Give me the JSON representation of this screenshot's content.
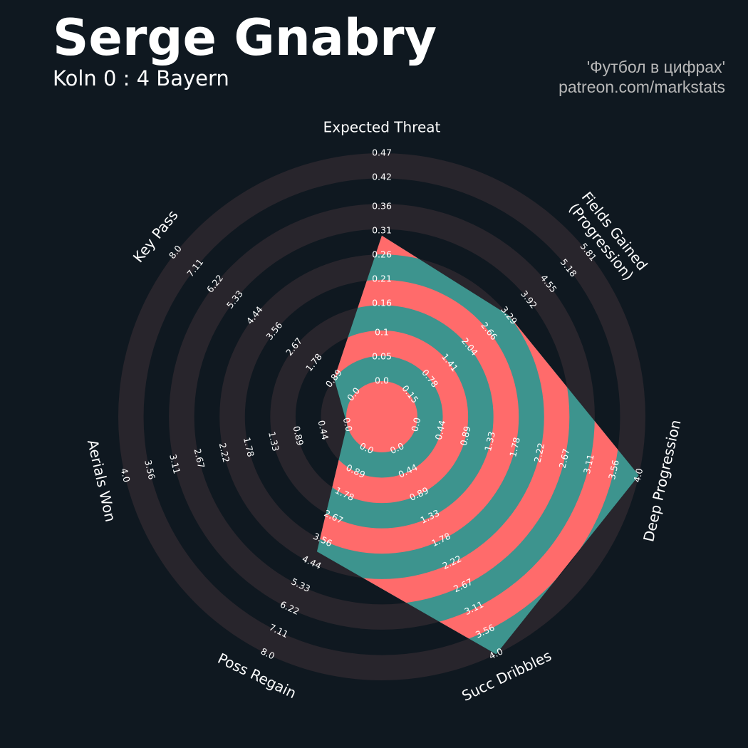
{
  "chart_data": {
    "type": "radar",
    "title": "Serge Gnabry",
    "subtitle": "Koln 0 : 4 Bayern",
    "credits": [
      "'Футбол в цифрах'",
      "patreon.com/markstats"
    ],
    "params": [
      "Expected Threat",
      "Fields Gained\n(Progression)",
      "Deep Progression",
      "Succ Dribbles",
      "Poss Regain",
      "Aerials Won",
      "Key Pass"
    ],
    "ranges": [
      [
        0,
        0.47
      ],
      [
        0.15,
        5.81
      ],
      [
        0,
        4
      ],
      [
        0,
        4
      ],
      [
        0,
        8
      ],
      [
        0,
        4
      ],
      [
        0,
        8
      ]
    ],
    "axis_ticks": [
      [
        {
          "value": 0,
          "label": "0.0"
        },
        0.05,
        0.1,
        0.16,
        0.21,
        0.26,
        0.31,
        0.36,
        0.42,
        0.47
      ],
      [
        0.15,
        0.78,
        1.41,
        2.04,
        2.66,
        3.29,
        3.92,
        4.55,
        5.18,
        5.81
      ],
      [
        {
          "value": 0,
          "label": "0.0"
        },
        0.44,
        0.89,
        1.33,
        1.78,
        2.22,
        2.67,
        3.11,
        3.56,
        {
          "value": 4,
          "label": "4.0"
        }
      ],
      [
        {
          "value": 0,
          "label": "0.0"
        },
        0.44,
        0.89,
        1.33,
        1.78,
        2.22,
        2.67,
        3.11,
        3.56,
        {
          "value": 4,
          "label": "4.0"
        }
      ],
      [
        {
          "value": 0,
          "label": "0.0"
        },
        0.89,
        1.78,
        2.67,
        3.56,
        4.44,
        5.33,
        6.22,
        7.11,
        {
          "value": 8,
          "label": "8.0"
        }
      ],
      [
        {
          "value": 0,
          "label": "0.0"
        },
        0.44,
        0.89,
        1.33,
        1.78,
        2.22,
        2.67,
        3.11,
        3.56,
        {
          "value": 4,
          "label": "4.0"
        }
      ],
      [
        {
          "value": 0,
          "label": "0.0"
        },
        0.89,
        1.78,
        2.67,
        3.56,
        4.44,
        5.33,
        6.22,
        7.11,
        {
          "value": 8,
          "label": "8.0"
        }
      ]
    ],
    "series": [
      {
        "values": [
          0.3,
          3.3,
          4.0,
          4.0,
          4.0,
          0,
          0.89
        ],
        "color": "#3d948e",
        "alt_color": "#ff6b6b"
      }
    ],
    "ring_color": "#28252c",
    "background": "#0f1820"
  }
}
